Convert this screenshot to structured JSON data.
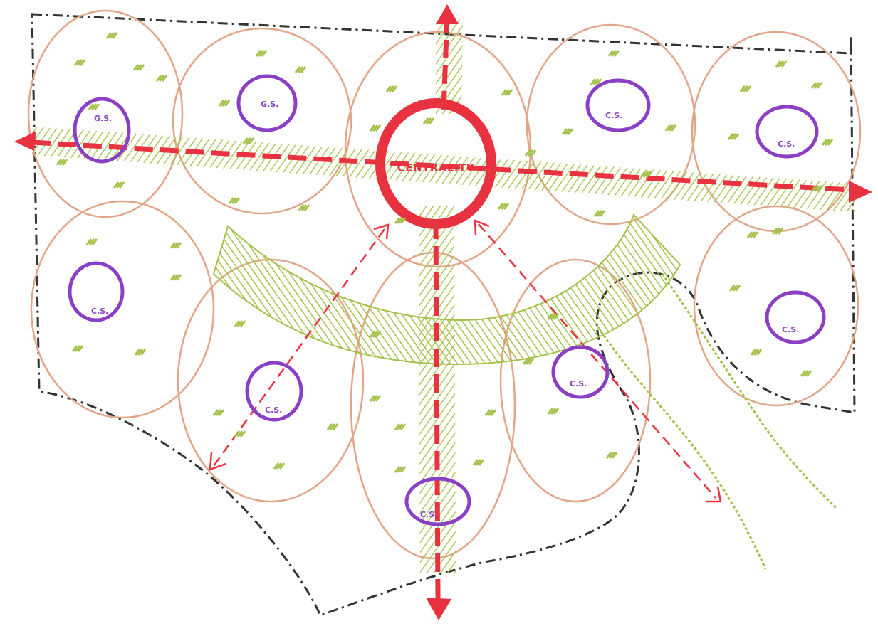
{
  "diagram": {
    "central_label": "CENTRALITY",
    "green_space_label": "G.S.",
    "green_space_labels": [
      "G.S.",
      "G.S.",
      "C.S.",
      "C.S.",
      "C.S.",
      "C.S.",
      "C.S.",
      "C.S.",
      "C.S."
    ],
    "colors": {
      "boundary": "#333333",
      "neighborhood": "#e3a587",
      "green": "#a4c24a",
      "axis": "#e8323f",
      "green_space": "#8b3fc4"
    }
  }
}
